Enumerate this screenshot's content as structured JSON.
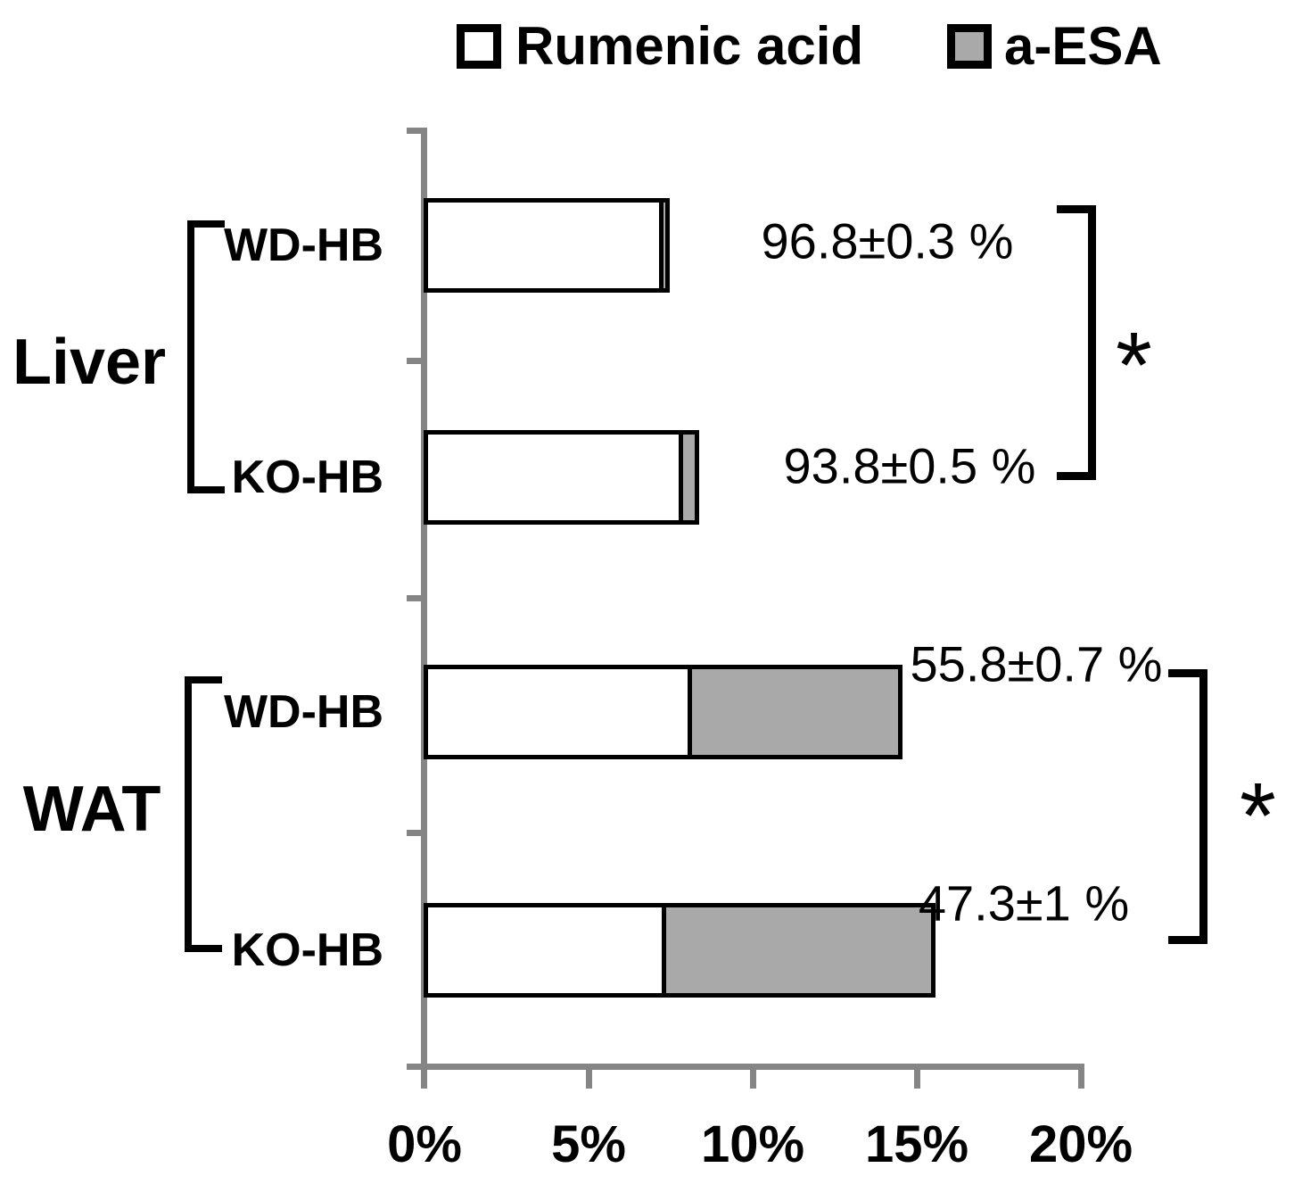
{
  "chart_data": {
    "type": "bar",
    "orientation": "horizontal",
    "stacked": true,
    "unit": "%",
    "x_axis": {
      "min": 0,
      "max": 20,
      "tick_labels": [
        "0%",
        "5%",
        "10%",
        "15%",
        "20%"
      ]
    },
    "groups": [
      {
        "label": "Liver",
        "significance": "*",
        "bar_indices": [
          0,
          1
        ]
      },
      {
        "label": "WAT",
        "significance": "*",
        "bar_indices": [
          2,
          3
        ]
      }
    ],
    "bar_labels": [
      "WD-HB",
      "KO-HB",
      "WD-HB",
      "KO-HB"
    ],
    "series": [
      {
        "name": "Rumenic acid",
        "color": "#ffffff",
        "values": [
          7.3,
          7.9,
          8.2,
          7.4
        ]
      },
      {
        "name": "a-ESA",
        "color": "#a9a9a9",
        "values": [
          0.2,
          0.5,
          6.4,
          8.2
        ]
      }
    ],
    "annotations": [
      "96.8±0.3 %",
      "93.8±0.5 %",
      "55.8±0.7 %",
      "47.3±1 %"
    ]
  },
  "colors": {
    "axis": "#858585",
    "bar_border": "#000000",
    "background": "#ffffff"
  }
}
